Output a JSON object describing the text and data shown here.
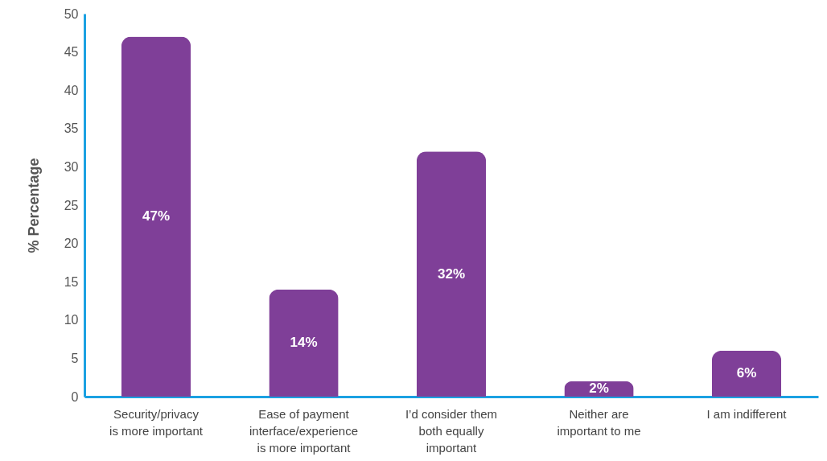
{
  "chart_data": {
    "type": "bar",
    "ylabel": "% Percentage",
    "categories": [
      "Security/privacy is more important",
      "Ease of payment interface/experience is more important",
      "I’d consider them both equally important",
      "Neither are important to me",
      "I am indifferent"
    ],
    "values": [
      47,
      14,
      32,
      2,
      6
    ],
    "value_labels": [
      "47%",
      "14%",
      "32%",
      "2%",
      "6%"
    ],
    "color": "#7f3f98",
    "ylim": [
      0,
      50
    ],
    "yticks": [
      0,
      5,
      10,
      15,
      20,
      25,
      30,
      35,
      40,
      45,
      50
    ],
    "grid": false
  }
}
